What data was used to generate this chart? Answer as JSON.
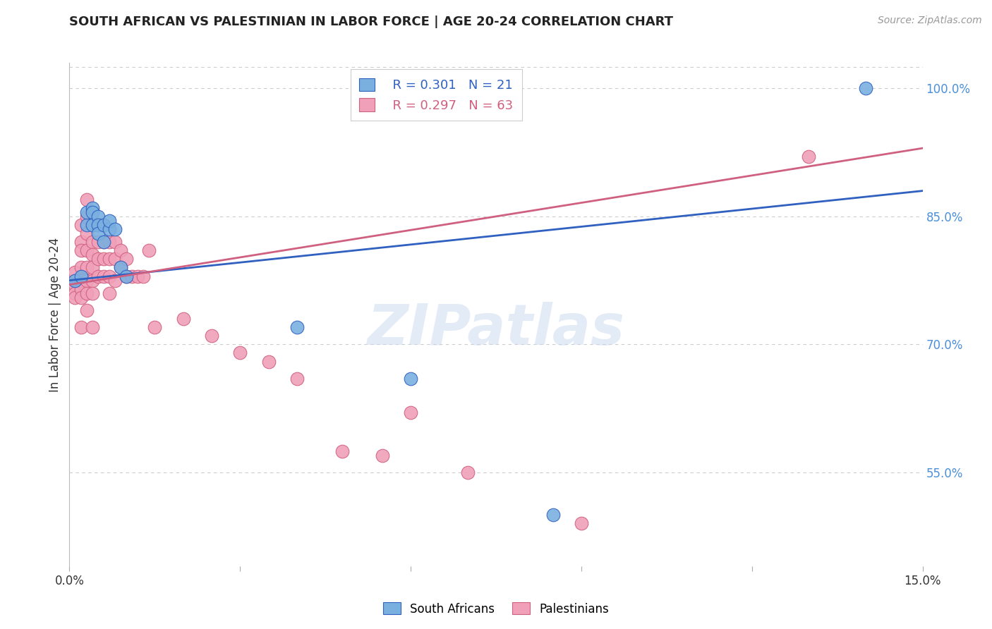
{
  "title": "SOUTH AFRICAN VS PALESTINIAN IN LABOR FORCE | AGE 20-24 CORRELATION CHART",
  "source": "Source: ZipAtlas.com",
  "ylabel": "In Labor Force | Age 20-24",
  "right_yticks": [
    "100.0%",
    "85.0%",
    "70.0%",
    "55.0%"
  ],
  "right_ytick_vals": [
    1.0,
    0.85,
    0.7,
    0.55
  ],
  "xmin": 0.0,
  "xmax": 0.15,
  "ymin": 0.44,
  "ymax": 1.03,
  "legend_blue_r": "R = 0.301",
  "legend_blue_n": "N = 21",
  "legend_pink_r": "R = 0.297",
  "legend_pink_n": "N = 63",
  "blue_color": "#7ab0e0",
  "pink_color": "#f0a0b8",
  "blue_line_color": "#3060c0",
  "pink_line_color": "#d06080",
  "watermark": "ZIPatlas",
  "south_african_x": [
    0.001,
    0.002,
    0.003,
    0.003,
    0.004,
    0.004,
    0.004,
    0.005,
    0.005,
    0.005,
    0.006,
    0.006,
    0.007,
    0.007,
    0.008,
    0.009,
    0.01,
    0.04,
    0.06,
    0.085,
    0.14
  ],
  "south_african_y": [
    0.775,
    0.78,
    0.84,
    0.855,
    0.84,
    0.86,
    0.855,
    0.85,
    0.84,
    0.83,
    0.84,
    0.82,
    0.835,
    0.845,
    0.835,
    0.79,
    0.78,
    0.72,
    0.66,
    0.5,
    1.0
  ],
  "palestinian_x": [
    0.001,
    0.001,
    0.001,
    0.001,
    0.001,
    0.002,
    0.002,
    0.002,
    0.002,
    0.002,
    0.002,
    0.002,
    0.002,
    0.003,
    0.003,
    0.003,
    0.003,
    0.003,
    0.003,
    0.003,
    0.003,
    0.004,
    0.004,
    0.004,
    0.004,
    0.004,
    0.004,
    0.004,
    0.005,
    0.005,
    0.005,
    0.005,
    0.006,
    0.006,
    0.006,
    0.006,
    0.007,
    0.007,
    0.007,
    0.007,
    0.008,
    0.008,
    0.008,
    0.009,
    0.009,
    0.01,
    0.01,
    0.011,
    0.012,
    0.013,
    0.014,
    0.015,
    0.02,
    0.025,
    0.03,
    0.035,
    0.04,
    0.048,
    0.055,
    0.06,
    0.07,
    0.09,
    0.13
  ],
  "palestinian_y": [
    0.775,
    0.785,
    0.77,
    0.76,
    0.755,
    0.82,
    0.84,
    0.81,
    0.79,
    0.775,
    0.765,
    0.755,
    0.72,
    0.87,
    0.85,
    0.83,
    0.81,
    0.79,
    0.775,
    0.76,
    0.74,
    0.84,
    0.82,
    0.805,
    0.79,
    0.775,
    0.76,
    0.72,
    0.84,
    0.82,
    0.8,
    0.78,
    0.84,
    0.82,
    0.8,
    0.78,
    0.82,
    0.8,
    0.78,
    0.76,
    0.82,
    0.8,
    0.775,
    0.81,
    0.79,
    0.8,
    0.78,
    0.78,
    0.78,
    0.78,
    0.81,
    0.72,
    0.73,
    0.71,
    0.69,
    0.68,
    0.66,
    0.575,
    0.57,
    0.62,
    0.55,
    0.49,
    0.92
  ],
  "blue_trend_x": [
    0.0,
    0.15
  ],
  "blue_trend_y": [
    0.775,
    0.88
  ],
  "pink_trend_x": [
    0.0,
    0.15
  ],
  "pink_trend_y": [
    0.77,
    0.93
  ],
  "grid_color": "#cccccc",
  "background_color": "#ffffff"
}
